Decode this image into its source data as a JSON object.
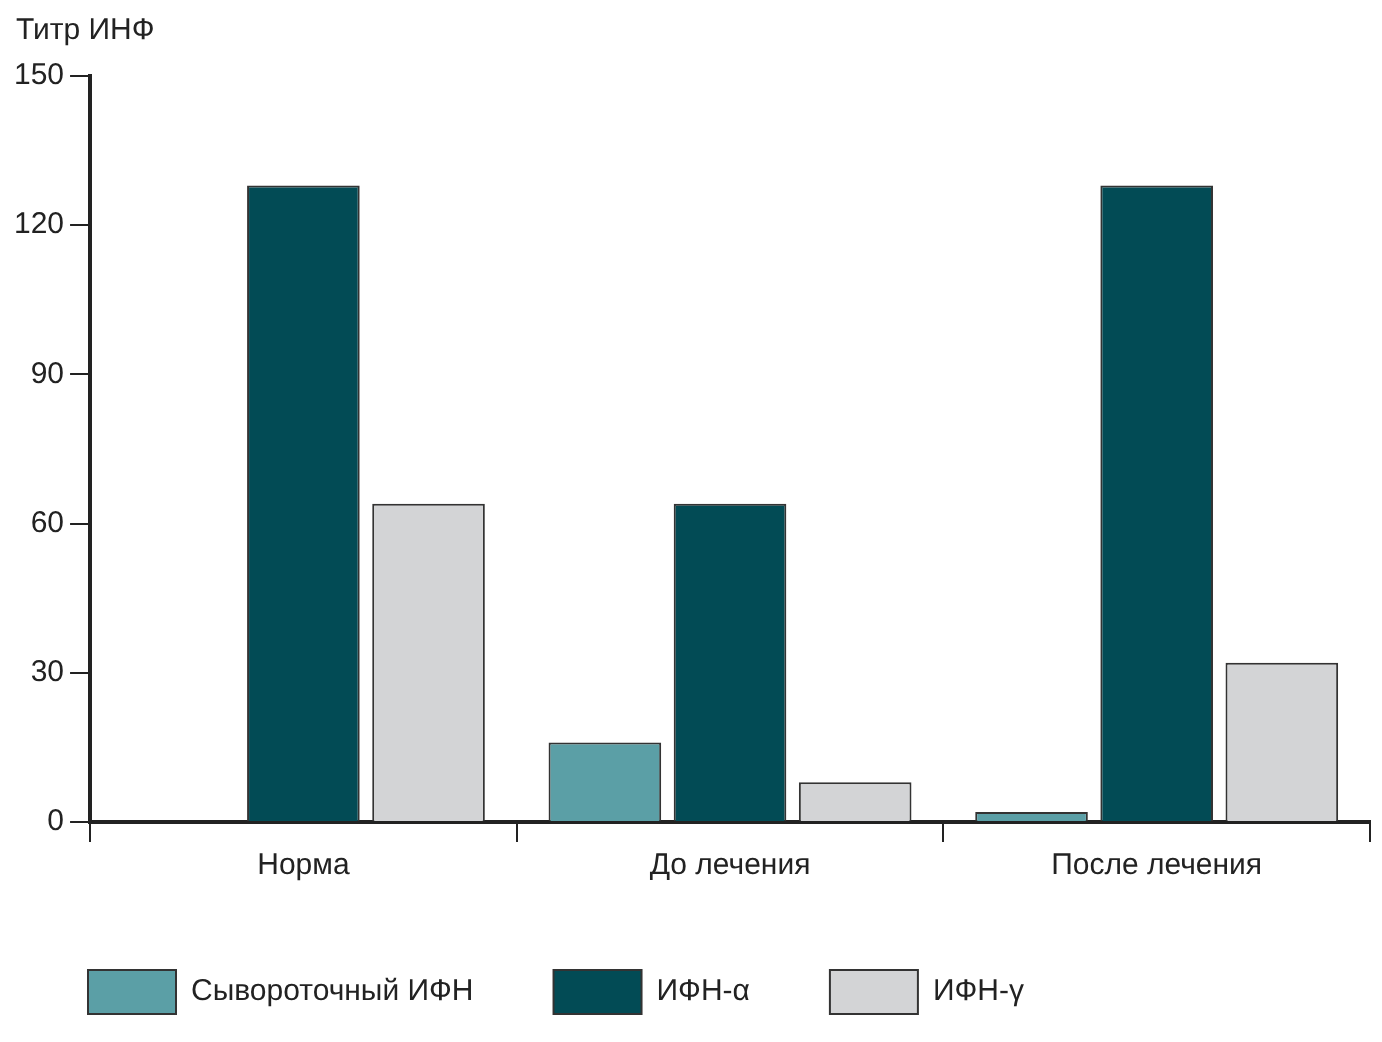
{
  "chart_data": {
    "type": "bar",
    "ylabel": "Титр ИНФ",
    "categories": [
      "Норма",
      "До лечения",
      "После лечения"
    ],
    "series": [
      {
        "name": "Сывороточный ИФН",
        "color": "#5b9fa6",
        "values": [
          0,
          16,
          2
        ]
      },
      {
        "name": "ИФН-α",
        "color": "#024b55",
        "values": [
          128,
          64,
          128
        ]
      },
      {
        "name": "ИФН-γ",
        "color": "#d3d4d6",
        "values": [
          64,
          8,
          32
        ]
      }
    ],
    "ylim": [
      0,
      150
    ],
    "yticks": [
      0,
      30,
      60,
      90,
      120,
      150
    ],
    "grid": false,
    "legend": "bottom"
  }
}
